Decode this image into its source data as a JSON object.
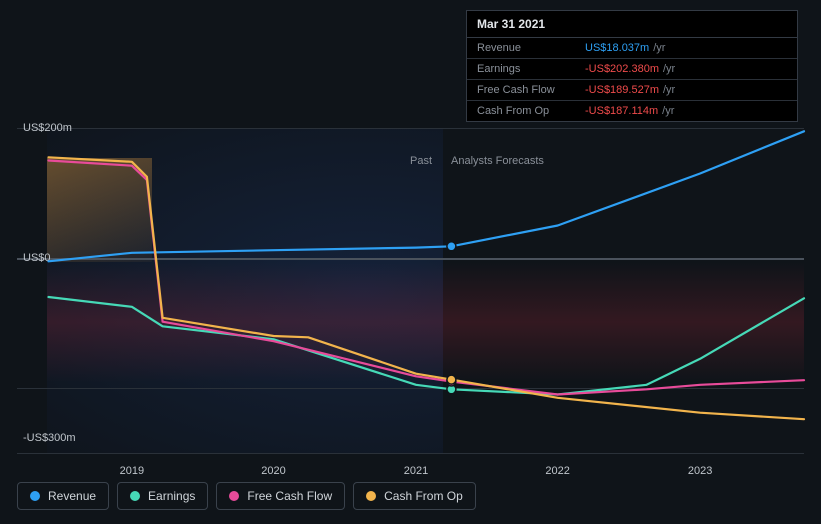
{
  "chart": {
    "type": "line",
    "background_color": "#0f1419",
    "grid_color": "#2a3139",
    "zero_line_color": "#4a525c",
    "label_color": "#c0c6cc",
    "label_fontsize": 11,
    "y_axis": {
      "min": -300,
      "max": 200,
      "ticks": [
        {
          "value": 200,
          "label": "US$200m"
        },
        {
          "value": 0,
          "label": "US$0"
        },
        {
          "value": -300,
          "label": "-US$300m"
        }
      ]
    },
    "x_axis": {
      "ticks": [
        {
          "t": 0.146,
          "label": "2019"
        },
        {
          "t": 0.326,
          "label": "2020"
        },
        {
          "t": 0.507,
          "label": "2021"
        },
        {
          "t": 0.687,
          "label": "2022"
        },
        {
          "t": 0.868,
          "label": "2023"
        }
      ]
    },
    "sections": {
      "past": {
        "label": "Past",
        "right_t": 0.552
      },
      "forecast": {
        "label": "Analysts Forecasts",
        "right_t": 1.0
      }
    },
    "marker_t": 0.552,
    "series": [
      {
        "key": "revenue",
        "name": "Revenue",
        "color": "#2ea0f4",
        "line_width": 2.2,
        "marker_value": 18,
        "points": [
          {
            "t": 0.04,
            "v": -5
          },
          {
            "t": 0.146,
            "v": 8
          },
          {
            "t": 0.326,
            "v": 12
          },
          {
            "t": 0.507,
            "v": 16
          },
          {
            "t": 0.552,
            "v": 18
          },
          {
            "t": 0.687,
            "v": 50
          },
          {
            "t": 0.868,
            "v": 130
          },
          {
            "t": 1.0,
            "v": 195
          }
        ]
      },
      {
        "key": "earnings",
        "name": "Earnings",
        "color": "#46d9b7",
        "line_width": 2.2,
        "marker_value": -202,
        "points": [
          {
            "t": 0.04,
            "v": -60
          },
          {
            "t": 0.146,
            "v": -75
          },
          {
            "t": 0.185,
            "v": -105
          },
          {
            "t": 0.326,
            "v": -125
          },
          {
            "t": 0.507,
            "v": -195
          },
          {
            "t": 0.552,
            "v": -202
          },
          {
            "t": 0.687,
            "v": -210
          },
          {
            "t": 0.8,
            "v": -195
          },
          {
            "t": 0.868,
            "v": -155
          },
          {
            "t": 1.0,
            "v": -62
          }
        ]
      },
      {
        "key": "fcf",
        "name": "Free Cash Flow",
        "color": "#e84b9a",
        "line_width": 2.2,
        "marker_value": -190,
        "points": [
          {
            "t": 0.04,
            "v": 150
          },
          {
            "t": 0.146,
            "v": 142
          },
          {
            "t": 0.165,
            "v": 120
          },
          {
            "t": 0.185,
            "v": -98
          },
          {
            "t": 0.326,
            "v": -128
          },
          {
            "t": 0.507,
            "v": -182
          },
          {
            "t": 0.552,
            "v": -190
          },
          {
            "t": 0.687,
            "v": -210
          },
          {
            "t": 0.8,
            "v": -202
          },
          {
            "t": 0.868,
            "v": -195
          },
          {
            "t": 1.0,
            "v": -188
          }
        ]
      },
      {
        "key": "cfo",
        "name": "Cash From Op",
        "color": "#f2b44c",
        "line_width": 2.2,
        "marker_value": -187,
        "points": [
          {
            "t": 0.04,
            "v": 155
          },
          {
            "t": 0.146,
            "v": 148
          },
          {
            "t": 0.165,
            "v": 125
          },
          {
            "t": 0.185,
            "v": -92
          },
          {
            "t": 0.326,
            "v": -120
          },
          {
            "t": 0.37,
            "v": -122
          },
          {
            "t": 0.507,
            "v": -178
          },
          {
            "t": 0.552,
            "v": -187
          },
          {
            "t": 0.687,
            "v": -215
          },
          {
            "t": 0.868,
            "v": -238
          },
          {
            "t": 1.0,
            "v": -248
          }
        ]
      }
    ]
  },
  "tooltip": {
    "title": "Mar 31 2021",
    "suffix": "/yr",
    "rows": [
      {
        "label": "Revenue",
        "value": "US$18.037m",
        "color": "#2ea0f4"
      },
      {
        "label": "Earnings",
        "value": "-US$202.380m",
        "color": "#ef4b4b"
      },
      {
        "label": "Free Cash Flow",
        "value": "-US$189.527m",
        "color": "#ef4b4b"
      },
      {
        "label": "Cash From Op",
        "value": "-US$187.114m",
        "color": "#ef4b4b"
      }
    ]
  },
  "legend": {
    "items": [
      {
        "label": "Revenue",
        "color": "#2ea0f4"
      },
      {
        "label": "Earnings",
        "color": "#46d9b7"
      },
      {
        "label": "Free Cash Flow",
        "color": "#e84b9a"
      },
      {
        "label": "Cash From Op",
        "color": "#f2b44c"
      }
    ]
  }
}
